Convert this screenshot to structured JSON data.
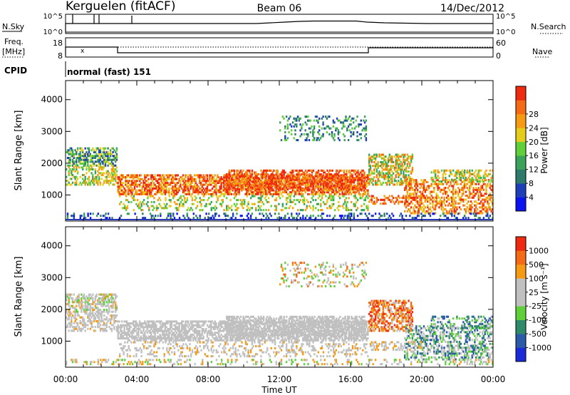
{
  "header": {
    "station": "Kerguelen (fitACF)",
    "beam": "Beam 06",
    "date": "14/Dec/2012"
  },
  "nsky_panel": {
    "left_label": "N.Sky",
    "right_label": "N.Search",
    "left_ticks": [
      "10^5",
      "10^0"
    ],
    "right_ticks": [
      "10^5",
      "10^0"
    ]
  },
  "freq_panel": {
    "left_label_1": "Freq.",
    "left_label_2": "[MHz]",
    "right_label": "Nave",
    "left_ticks": [
      "18",
      "8"
    ],
    "right_ticks": [
      "60",
      "0"
    ]
  },
  "cpid": {
    "label": "CPID",
    "program": "normal (fast) 151"
  },
  "chart_data": [
    {
      "type": "heatmap",
      "quantity": "Power",
      "ylabel": "Slant Range [km]",
      "ylim": [
        180,
        4600
      ],
      "yticks": [
        "1000",
        "2000",
        "3000",
        "4000"
      ],
      "xticks": [
        "00:00",
        "04:00",
        "08:00",
        "12:00",
        "16:00",
        "20:00",
        "00:00"
      ],
      "colorbar": {
        "label": "Power [dB]",
        "ticks": [
          "4",
          "8",
          "12",
          "16",
          "20",
          "24",
          "28"
        ],
        "colors": [
          "#0a14f0",
          "#1f3fb8",
          "#2e7a6a",
          "#39a35a",
          "#5fd03a",
          "#e6cc1a",
          "#f59a12",
          "#f56a14",
          "#ee2a10"
        ]
      }
    },
    {
      "type": "heatmap",
      "quantity": "Velocity",
      "ylabel": "Slant Range [km]",
      "ylim": [
        180,
        4600
      ],
      "yticks": [
        "1000",
        "2000",
        "3000",
        "4000"
      ],
      "xticks": [
        "00:00",
        "04:00",
        "08:00",
        "12:00",
        "16:00",
        "20:00",
        "00:00"
      ],
      "xlabel": "Time UT",
      "colorbar": {
        "label": "Velocity [m s⁻¹]",
        "ticks": [
          "1000",
          "500",
          "100",
          "25",
          "-25",
          "-100",
          "-500",
          "-1000"
        ],
        "colors": [
          "#1a2ad8",
          "#2a5aa8",
          "#2f8a6a",
          "#5fd03a",
          "#c0c0c0",
          "#c0c0c0",
          "#f59a12",
          "#f56a14",
          "#ee2a10"
        ]
      }
    }
  ]
}
